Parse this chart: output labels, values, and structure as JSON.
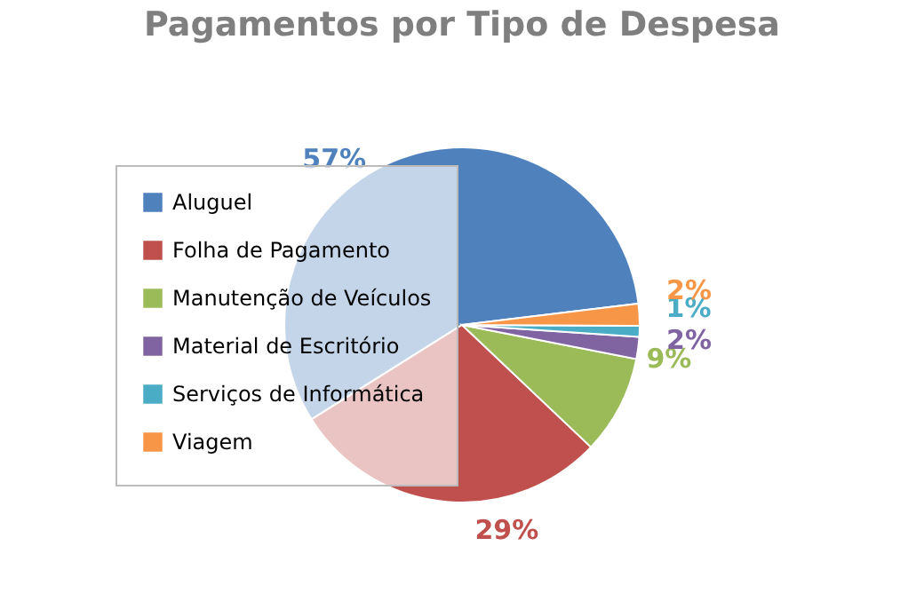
{
  "chart_data": {
    "type": "pie",
    "title": "Pagamentos por Tipo de Despesa",
    "categories": [
      "Aluguel",
      "Folha de Pagamento",
      "Manutenção de Veículos",
      "Material de Escritório",
      "Serviços de Informática",
      "Viagem"
    ],
    "values": [
      57,
      29,
      9,
      2,
      1,
      2
    ],
    "colors": [
      "#4f81bd",
      "#c0504d",
      "#9bbb59",
      "#8064a2",
      "#4bacc6",
      "#f79646"
    ],
    "value_labels": [
      "57%",
      "29%",
      "9%",
      "2%",
      "1%",
      "2%"
    ],
    "legend": "left"
  }
}
